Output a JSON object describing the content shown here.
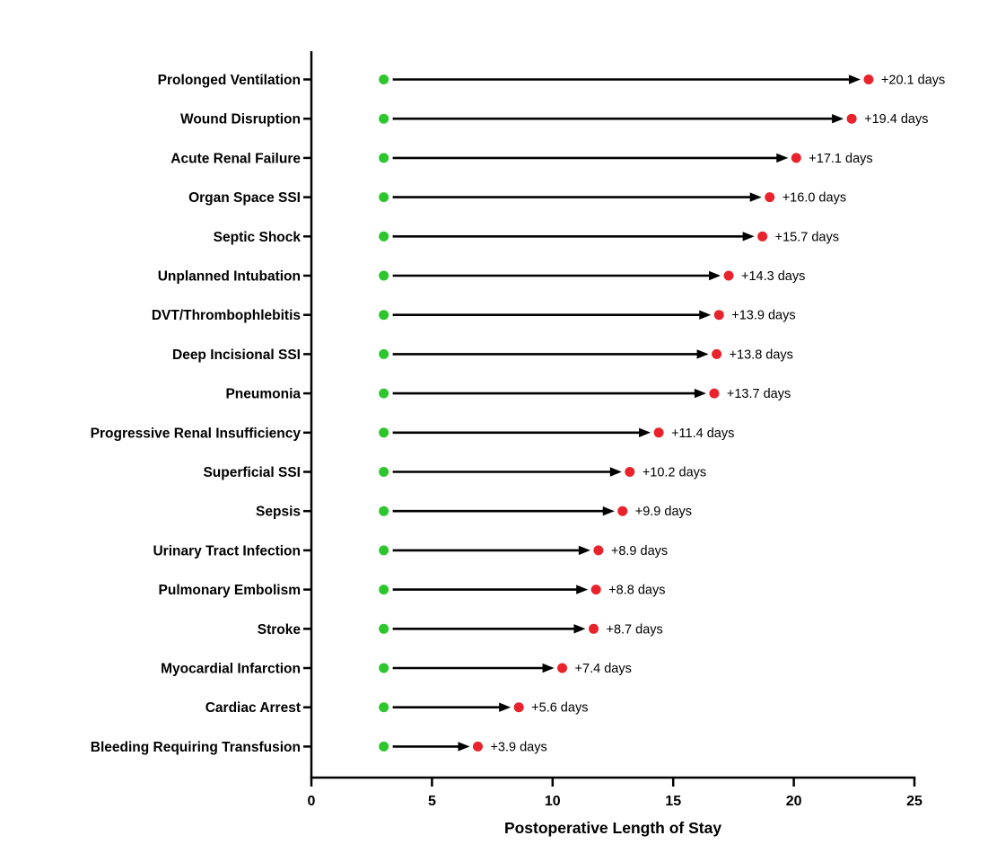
{
  "chart_data": {
    "type": "scatter",
    "variant": "dumbbell-arrow",
    "title": "",
    "xlabel": "Postoperative Length of Stay",
    "ylabel": "",
    "xlim": [
      0,
      25
    ],
    "xticks": [
      "0",
      "5",
      "10",
      "15",
      "20",
      "25"
    ],
    "grid": false,
    "legend": false,
    "baseline_days": 3,
    "categories": [
      "Prolonged Ventilation",
      "Wound Disruption",
      "Acute Renal Failure",
      "Organ Space SSI",
      "Septic Shock",
      "Unplanned Intubation",
      "DVT/Thrombophlebitis",
      "Deep Incisional SSI",
      "Pneumonia",
      "Progressive Renal Insufficiency",
      "Superficial SSI",
      "Sepsis",
      "Urinary Tract Infection",
      "Pulmonary Embolism",
      "Stroke",
      "Myocardial Infarction",
      "Cardiac Arrest",
      "Bleeding Requiring Transfusion"
    ],
    "increase_days": [
      20.1,
      19.4,
      17.1,
      16.0,
      15.7,
      14.3,
      13.9,
      13.8,
      13.7,
      11.4,
      10.2,
      9.9,
      8.9,
      8.8,
      8.7,
      7.4,
      5.6,
      3.9
    ],
    "endpoint_days": [
      23.1,
      22.4,
      20.1,
      19.0,
      18.7,
      17.3,
      16.9,
      16.8,
      16.7,
      14.4,
      13.2,
      12.9,
      11.9,
      11.8,
      11.7,
      10.4,
      8.6,
      6.9
    ],
    "point_labels": [
      "+20.1 days",
      "+19.4 days",
      "+17.1 days",
      "+16.0 days",
      "+15.7 days",
      "+14.3 days",
      "+13.9 days",
      "+13.8 days",
      "+13.7 days",
      "+11.4 days",
      "+10.2 days",
      "+9.9 days",
      "+8.9 days",
      "+8.8 days",
      "+8.7 days",
      "+7.4 days",
      "+5.6 days",
      "+3.9 days"
    ],
    "colors": {
      "baseline_dot": "#2dc62d",
      "endpoint_dot": "#e8232b",
      "arrow": "#000000",
      "axis": "#000000",
      "text": "#000000",
      "background": "#ffffff"
    }
  }
}
